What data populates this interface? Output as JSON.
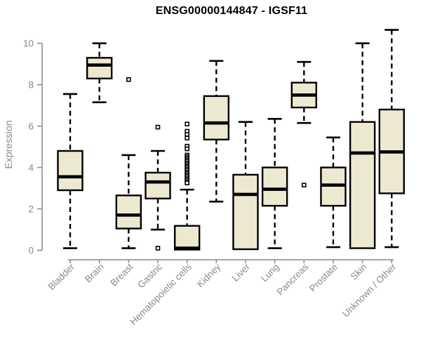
{
  "chart_data": {
    "type": "boxplot",
    "title": "ENSG00000144847 - IGSF11",
    "ylabel": "Expression",
    "xlabel": "",
    "ylim": [
      0,
      10.8
    ],
    "yticks": [
      0,
      2,
      4,
      6,
      8,
      10
    ],
    "grid": false,
    "legend": "none",
    "colors": {
      "box_fill": "#ede8d0",
      "box_border": "#000000",
      "median": "#000000",
      "whisker": "#000000",
      "axis": "#888888",
      "tick_label": "#8a8a8a",
      "title": "#000000"
    },
    "categories": [
      "Bladder",
      "Brain",
      "Breast",
      "Gastric",
      "Hematopoietic cells",
      "Kidney",
      "Liver",
      "Lung",
      "Pancreas",
      "Prostate",
      "Skin",
      "Unknown / Other"
    ],
    "boxes": [
      {
        "category": "Bladder",
        "whisker_low": 0.1,
        "q1": 2.9,
        "median": 3.55,
        "q3": 4.8,
        "whisker_high": 7.55,
        "outliers": []
      },
      {
        "category": "Brain",
        "whisker_low": 7.15,
        "q1": 8.3,
        "median": 8.95,
        "q3": 9.3,
        "whisker_high": 10.0,
        "outliers": []
      },
      {
        "category": "Breast",
        "whisker_low": 0.1,
        "q1": 1.05,
        "median": 1.7,
        "q3": 2.65,
        "whisker_high": 4.6,
        "outliers": [
          8.25
        ]
      },
      {
        "category": "Gastric",
        "whisker_low": 1.0,
        "q1": 2.5,
        "median": 3.3,
        "q3": 3.75,
        "whisker_high": 4.8,
        "outliers": [
          5.95,
          0.1
        ]
      },
      {
        "category": "Hematopoietic cells",
        "whisker_low": 0.03,
        "q1": 0.03,
        "median": 0.1,
        "q3": 1.18,
        "whisker_high": 2.93,
        "outliers": [
          6.1,
          5.75,
          5.6,
          5.42,
          5.03,
          4.9,
          4.6,
          4.52,
          4.45,
          4.37,
          4.3,
          4.22,
          4.15,
          4.07,
          4.0,
          3.92,
          3.85,
          3.77,
          3.7,
          3.62,
          3.55,
          3.47,
          3.4,
          3.32,
          3.25
        ]
      },
      {
        "category": "Kidney",
        "whisker_low": 2.35,
        "q1": 5.35,
        "median": 6.15,
        "q3": 7.45,
        "whisker_high": 9.15,
        "outliers": []
      },
      {
        "category": "Liver",
        "whisker_low": 0.05,
        "q1": 0.05,
        "median": 2.7,
        "q3": 3.65,
        "whisker_high": 6.2,
        "outliers": []
      },
      {
        "category": "Lung",
        "whisker_low": 0.1,
        "q1": 2.15,
        "median": 2.95,
        "q3": 4.0,
        "whisker_high": 6.35,
        "outliers": []
      },
      {
        "category": "Pancreas",
        "whisker_low": 6.15,
        "q1": 6.9,
        "median": 7.5,
        "q3": 8.1,
        "whisker_high": 9.1,
        "outliers": [
          3.15
        ]
      },
      {
        "category": "Prostate",
        "whisker_low": 0.15,
        "q1": 2.15,
        "median": 3.15,
        "q3": 4.0,
        "whisker_high": 5.45,
        "outliers": []
      },
      {
        "category": "Skin",
        "whisker_low": 0.1,
        "q1": 0.1,
        "median": 4.7,
        "q3": 6.2,
        "whisker_high": 10.0,
        "outliers": []
      },
      {
        "category": "Unknown / Other",
        "whisker_low": 0.15,
        "q1": 2.75,
        "median": 4.75,
        "q3": 6.8,
        "whisker_high": 10.65,
        "outliers": []
      }
    ]
  }
}
